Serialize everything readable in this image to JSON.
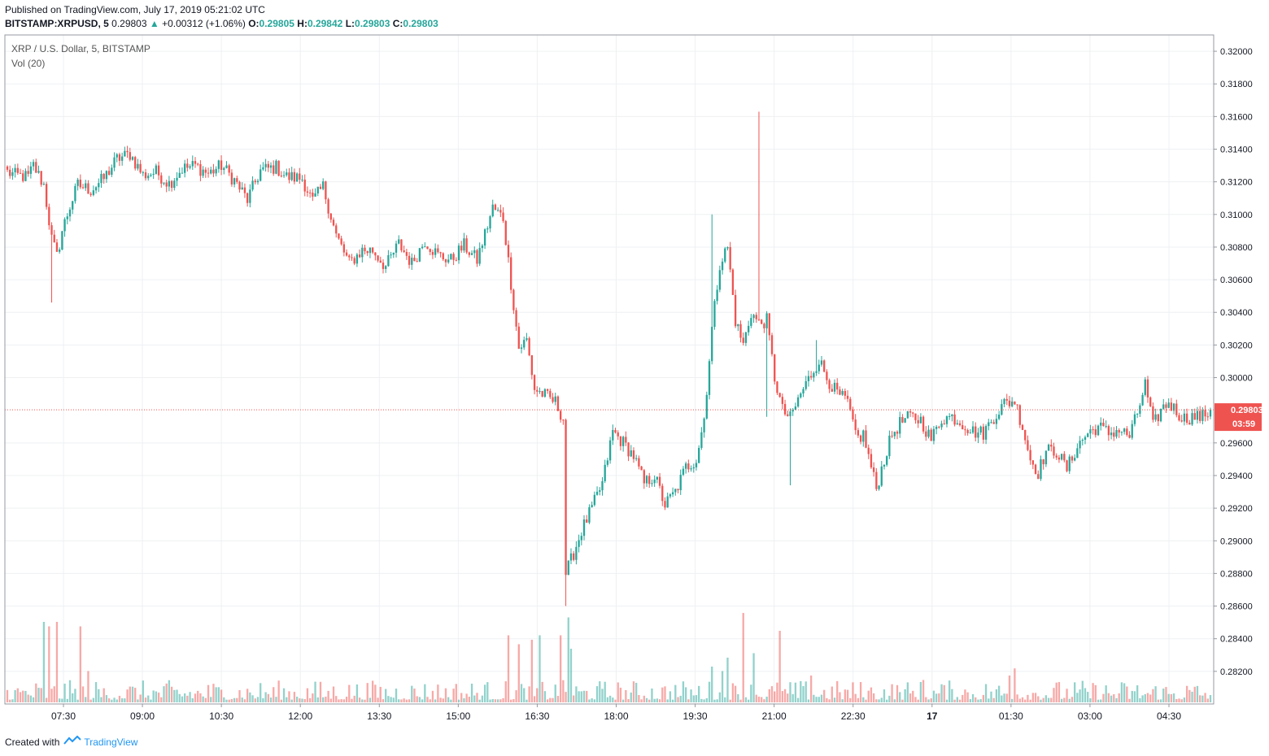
{
  "header": {
    "published": "Published on TradingView.com, July 17, 2019 05:21:02 UTC",
    "symbol": "BITSTAMP:XRPUSD, 5",
    "last": "0.29803",
    "change": "+0.00312 (+1.06%)",
    "o_label": "O:",
    "o_value": "0.29805",
    "h_label": "H:",
    "h_value": "0.29842",
    "l_label": "L:",
    "l_value": "0.29803",
    "c_label": "C:",
    "c_value": "0.29803"
  },
  "legend": {
    "title": "XRP / U.S. Dollar, 5, BITSTAMP",
    "volume": "Vol (20)"
  },
  "price_badge": {
    "price": "0.29803",
    "countdown": "03:59"
  },
  "footer": {
    "created_with": "Created with",
    "brand": "TradingView"
  },
  "colors": {
    "up": "#26a69a",
    "down": "#ef5350",
    "grid": "#eef0f3",
    "badge": "#ef5350"
  },
  "chart_data": {
    "type": "candlestick",
    "ylim": [
      0.28,
      0.321
    ],
    "y_ticks": [
      "0.32000",
      "0.31800",
      "0.31600",
      "0.31400",
      "0.31200",
      "0.31000",
      "0.30800",
      "0.30600",
      "0.30400",
      "0.30200",
      "0.30000",
      "0.29600",
      "0.29400",
      "0.29200",
      "0.29000",
      "0.28800",
      "0.28600",
      "0.28400",
      "0.28200"
    ],
    "x_ticks": [
      "07:30",
      "09:00",
      "10:30",
      "12:00",
      "13:30",
      "15:00",
      "16:30",
      "18:00",
      "19:30",
      "21:00",
      "22:30",
      "17",
      "01:30",
      "03:00",
      "04:30"
    ],
    "last_price": 0.29803,
    "anchors": [
      [
        0,
        0.3126
      ],
      [
        3,
        0.3124
      ],
      [
        8,
        0.3123
      ],
      [
        10,
        0.313
      ],
      [
        14,
        0.3118
      ],
      [
        17,
        0.3085
      ],
      [
        19,
        0.3074
      ],
      [
        21,
        0.309
      ],
      [
        24,
        0.3105
      ],
      [
        27,
        0.3118
      ],
      [
        32,
        0.3115
      ],
      [
        37,
        0.3122
      ],
      [
        42,
        0.3134
      ],
      [
        47,
        0.3137
      ],
      [
        52,
        0.3124
      ],
      [
        57,
        0.3126
      ],
      [
        62,
        0.3119
      ],
      [
        67,
        0.3128
      ],
      [
        72,
        0.313
      ],
      [
        77,
        0.3125
      ],
      [
        82,
        0.313
      ],
      [
        87,
        0.3121
      ],
      [
        92,
        0.3109
      ],
      [
        97,
        0.3127
      ],
      [
        103,
        0.3129
      ],
      [
        107,
        0.3123
      ],
      [
        113,
        0.3122
      ],
      [
        117,
        0.3108
      ],
      [
        121,
        0.3117
      ],
      [
        126,
        0.3087
      ],
      [
        131,
        0.307
      ],
      [
        136,
        0.3078
      ],
      [
        140,
        0.3078
      ],
      [
        145,
        0.3068
      ],
      [
        150,
        0.3082
      ],
      [
        155,
        0.307
      ],
      [
        160,
        0.3084
      ],
      [
        165,
        0.3075
      ],
      [
        170,
        0.3072
      ],
      [
        175,
        0.3081
      ],
      [
        180,
        0.3072
      ],
      [
        186,
        0.3104
      ],
      [
        190,
        0.3098
      ],
      [
        193,
        0.3058
      ],
      [
        196,
        0.3018
      ],
      [
        199,
        0.3023
      ],
      [
        202,
        0.2993
      ],
      [
        206,
        0.2989
      ],
      [
        210,
        0.2985
      ],
      [
        213,
        0.2975
      ],
      [
        214,
        0.288
      ],
      [
        216,
        0.2888
      ],
      [
        220,
        0.2906
      ],
      [
        224,
        0.292
      ],
      [
        228,
        0.2935
      ],
      [
        232,
        0.2967
      ],
      [
        236,
        0.296
      ],
      [
        240,
        0.2952
      ],
      [
        244,
        0.2935
      ],
      [
        248,
        0.294
      ],
      [
        252,
        0.2922
      ],
      [
        256,
        0.293
      ],
      [
        260,
        0.2945
      ],
      [
        264,
        0.295
      ],
      [
        267,
        0.2975
      ],
      [
        270,
        0.303
      ],
      [
        273,
        0.307
      ],
      [
        276,
        0.308
      ],
      [
        279,
        0.3035
      ],
      [
        282,
        0.302
      ],
      [
        285,
        0.304
      ],
      [
        288,
        0.3033
      ],
      [
        291,
        0.3035
      ],
      [
        294,
        0.3
      ],
      [
        297,
        0.298
      ],
      [
        300,
        0.2975
      ],
      [
        304,
        0.299
      ],
      [
        308,
        0.3002
      ],
      [
        311,
        0.3011
      ],
      [
        314,
        0.3
      ],
      [
        318,
        0.299
      ],
      [
        322,
        0.2985
      ],
      [
        324,
        0.297
      ],
      [
        326,
        0.2963
      ],
      [
        328,
        0.2965
      ],
      [
        331,
        0.2945
      ],
      [
        333,
        0.2932
      ],
      [
        336,
        0.295
      ],
      [
        339,
        0.2965
      ],
      [
        342,
        0.2972
      ],
      [
        346,
        0.2976
      ],
      [
        350,
        0.2974
      ],
      [
        354,
        0.2962
      ],
      [
        358,
        0.2975
      ],
      [
        362,
        0.2976
      ],
      [
        366,
        0.2972
      ],
      [
        370,
        0.2967
      ],
      [
        374,
        0.2966
      ],
      [
        378,
        0.2976
      ],
      [
        382,
        0.2984
      ],
      [
        386,
        0.2986
      ],
      [
        389,
        0.297
      ],
      [
        392,
        0.295
      ],
      [
        395,
        0.2942
      ],
      [
        398,
        0.2955
      ],
      [
        402,
        0.2955
      ],
      [
        406,
        0.2944
      ],
      [
        410,
        0.2958
      ],
      [
        414,
        0.2966
      ],
      [
        418,
        0.297
      ],
      [
        422,
        0.2966
      ],
      [
        426,
        0.2968
      ],
      [
        430,
        0.2964
      ],
      [
        433,
        0.2978
      ],
      [
        436,
        0.2996
      ],
      [
        439,
        0.297
      ],
      [
        442,
        0.298
      ],
      [
        445,
        0.2985
      ],
      [
        448,
        0.2979
      ],
      [
        451,
        0.2975
      ],
      [
        454,
        0.2976
      ],
      [
        458,
        0.2976
      ],
      [
        461,
        0.298
      ]
    ],
    "spikes": [
      {
        "i": 288,
        "high": 0.3163
      },
      {
        "i": 291,
        "low": 0.2976
      },
      {
        "i": 300,
        "low": 0.2934
      },
      {
        "i": 270,
        "high": 0.31
      },
      {
        "i": 17,
        "low": 0.3046
      },
      {
        "i": 214,
        "low": 0.286
      },
      {
        "i": 310,
        "high": 0.3023
      }
    ],
    "volume_peaks": [
      [
        14,
        0.9
      ],
      [
        16,
        0.85
      ],
      [
        19,
        0.9
      ],
      [
        28,
        0.85
      ],
      [
        31,
        0.35
      ],
      [
        192,
        0.75
      ],
      [
        196,
        0.65
      ],
      [
        201,
        0.7
      ],
      [
        204,
        0.75
      ],
      [
        212,
        0.75
      ],
      [
        215,
        0.95
      ],
      [
        216,
        0.6
      ],
      [
        282,
        1.0
      ],
      [
        286,
        0.55
      ],
      [
        296,
        0.8
      ],
      [
        270,
        0.4
      ],
      [
        274,
        0.35
      ],
      [
        276,
        0.5
      ],
      [
        308,
        0.3
      ],
      [
        386,
        0.38
      ],
      [
        384,
        0.3
      ],
      [
        351,
        0.25
      ]
    ]
  }
}
